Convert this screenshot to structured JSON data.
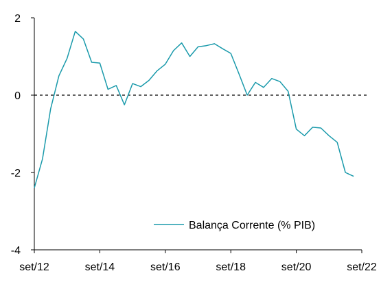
{
  "chart_data": {
    "type": "line",
    "title": "",
    "xlabel": "",
    "ylabel": "",
    "ylim": [
      -4,
      2
    ],
    "yticks": [
      2,
      0,
      -2,
      -4
    ],
    "xlim": [
      "2012-09",
      "2022-09"
    ],
    "xtick_labels": [
      "set/12",
      "set/14",
      "set/16",
      "set/18",
      "set/20",
      "set/22"
    ],
    "grid": false,
    "reference_line": {
      "y": 0,
      "style": "dashed"
    },
    "legend": {
      "position": "bottom-right"
    },
    "series": [
      {
        "name": "Balança Corrente (% PIB)",
        "color": "#1a9aab",
        "points": [
          [
            "2012-09",
            -2.4
          ],
          [
            "2012-12",
            -1.65
          ],
          [
            "2013-03",
            -0.35
          ],
          [
            "2013-06",
            0.5
          ],
          [
            "2013-09",
            0.95
          ],
          [
            "2013-12",
            1.65
          ],
          [
            "2014-03",
            1.45
          ],
          [
            "2014-06",
            0.85
          ],
          [
            "2014-09",
            0.83
          ],
          [
            "2014-12",
            0.15
          ],
          [
            "2015-03",
            0.25
          ],
          [
            "2015-06",
            -0.25
          ],
          [
            "2015-09",
            0.3
          ],
          [
            "2015-12",
            0.22
          ],
          [
            "2016-03",
            0.38
          ],
          [
            "2016-06",
            0.63
          ],
          [
            "2016-09",
            0.8
          ],
          [
            "2016-12",
            1.15
          ],
          [
            "2017-03",
            1.35
          ],
          [
            "2017-06",
            1.0
          ],
          [
            "2017-09",
            1.25
          ],
          [
            "2017-12",
            1.28
          ],
          [
            "2018-03",
            1.33
          ],
          [
            "2018-06",
            1.2
          ],
          [
            "2018-09",
            1.08
          ],
          [
            "2018-12",
            0.55
          ],
          [
            "2019-03",
            0.0
          ],
          [
            "2019-06",
            0.33
          ],
          [
            "2019-09",
            0.2
          ],
          [
            "2019-12",
            0.43
          ],
          [
            "2020-03",
            0.35
          ],
          [
            "2020-06",
            0.1
          ],
          [
            "2020-09",
            -0.88
          ],
          [
            "2020-12",
            -1.05
          ],
          [
            "2021-03",
            -0.83
          ],
          [
            "2021-06",
            -0.85
          ],
          [
            "2021-09",
            -1.05
          ],
          [
            "2021-12",
            -1.22
          ],
          [
            "2022-03",
            -2.0
          ],
          [
            "2022-06",
            -2.1
          ]
        ]
      }
    ]
  }
}
